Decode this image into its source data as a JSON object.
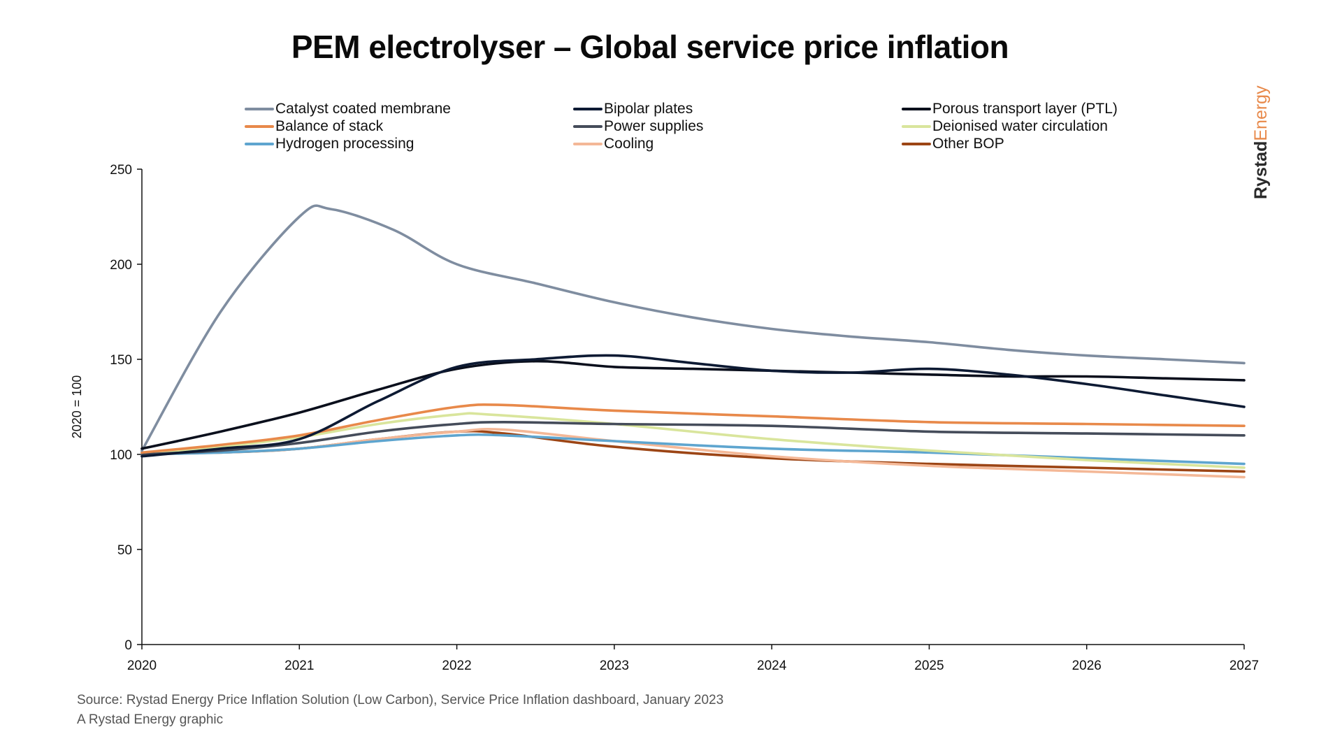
{
  "brand": {
    "part1": "Rystad",
    "part2": "Energy"
  },
  "footer": {
    "source": "Source: Rystad Energy Price Inflation Solution (Low Carbon), Service Price Inflation dashboard, January 2023",
    "credit": "A Rystad Energy graphic"
  },
  "chart_data": {
    "type": "line",
    "title": "PEM electrolyser – Global service price inflation",
    "xlabel": "",
    "ylabel": "2020 = 100",
    "x_ticks": [
      "2020",
      "2021",
      "2022",
      "2023",
      "2024",
      "2025",
      "2026",
      "2027"
    ],
    "y_ticks": [
      "0",
      "50",
      "100",
      "150",
      "200",
      "250"
    ],
    "xlim": [
      2020,
      2027
    ],
    "ylim": [
      0,
      250
    ],
    "grid": false,
    "legend_position": "top",
    "series": [
      {
        "name": "Catalyst coated membrane",
        "color": "#7f8da0",
        "x": [
          2020,
          2020.5,
          2021,
          2021.2,
          2021.6,
          2022,
          2022.5,
          2023,
          2023.5,
          2024,
          2024.5,
          2025,
          2025.5,
          2026,
          2026.5,
          2027
        ],
        "y": [
          102,
          175,
          225,
          229,
          218,
          200,
          190,
          180,
          172,
          166,
          162,
          159,
          155,
          152,
          150,
          148
        ]
      },
      {
        "name": "Bipolar plates",
        "color": "#0d1a33",
        "x": [
          2020,
          2020.5,
          2021,
          2021.5,
          2022,
          2022.5,
          2023,
          2023.5,
          2024,
          2024.5,
          2025,
          2025.5,
          2026,
          2026.5,
          2027
        ],
        "y": [
          99,
          103,
          108,
          128,
          146,
          150,
          152,
          148,
          144,
          143,
          145,
          142,
          137,
          131,
          125
        ]
      },
      {
        "name": "Porous transport layer (PTL)",
        "color": "#0a0f1c",
        "x": [
          2020,
          2020.5,
          2021,
          2021.5,
          2022,
          2022.5,
          2023,
          2023.5,
          2024,
          2024.5,
          2025,
          2025.5,
          2026,
          2026.5,
          2027
        ],
        "y": [
          103,
          112,
          122,
          134,
          145,
          149,
          146,
          145,
          144,
          143,
          142,
          141,
          141,
          140,
          139
        ]
      },
      {
        "name": "Balance of stack",
        "color": "#e8894a",
        "x": [
          2020,
          2020.5,
          2021,
          2021.5,
          2022,
          2022.3,
          2023,
          2024,
          2025,
          2026,
          2027
        ],
        "y": [
          101,
          105,
          110,
          118,
          125,
          126,
          123,
          120,
          117,
          116,
          115
        ]
      },
      {
        "name": "Power supplies",
        "color": "#454c5a",
        "x": [
          2020,
          2020.5,
          2021,
          2021.5,
          2022,
          2022.3,
          2023,
          2024,
          2025,
          2026,
          2027
        ],
        "y": [
          100,
          102,
          106,
          112,
          116,
          117,
          116,
          115,
          112,
          111,
          110
        ]
      },
      {
        "name": "Deionised water circulation",
        "color": "#d9e59c",
        "x": [
          2020,
          2020.5,
          2021,
          2021.5,
          2022,
          2022.2,
          2023,
          2024,
          2025,
          2026,
          2027
        ],
        "y": [
          100,
          104,
          109,
          116,
          121,
          121,
          116,
          108,
          102,
          97,
          93
        ]
      },
      {
        "name": "Hydrogen processing",
        "color": "#5ea5cf",
        "x": [
          2020,
          2020.5,
          2021,
          2021.5,
          2022,
          2022.3,
          2023,
          2024,
          2025,
          2026,
          2027
        ],
        "y": [
          100,
          101,
          103,
          107,
          110,
          110,
          107,
          103,
          101,
          98,
          95
        ]
      },
      {
        "name": "Cooling",
        "color": "#f4b897",
        "x": [
          2020,
          2020.5,
          2021,
          2021.5,
          2022,
          2022.3,
          2023,
          2024,
          2025,
          2026,
          2027
        ],
        "y": [
          100,
          101,
          103,
          108,
          112,
          113,
          107,
          99,
          94,
          91,
          88
        ]
      },
      {
        "name": "Other BOP",
        "color": "#9c4515",
        "x": [
          2020,
          2020.5,
          2021,
          2021.5,
          2022,
          2022.3,
          2023,
          2024,
          2025,
          2026,
          2027
        ],
        "y": [
          101,
          101,
          103,
          108,
          112,
          111,
          104,
          98,
          95,
          93,
          91
        ]
      }
    ]
  }
}
